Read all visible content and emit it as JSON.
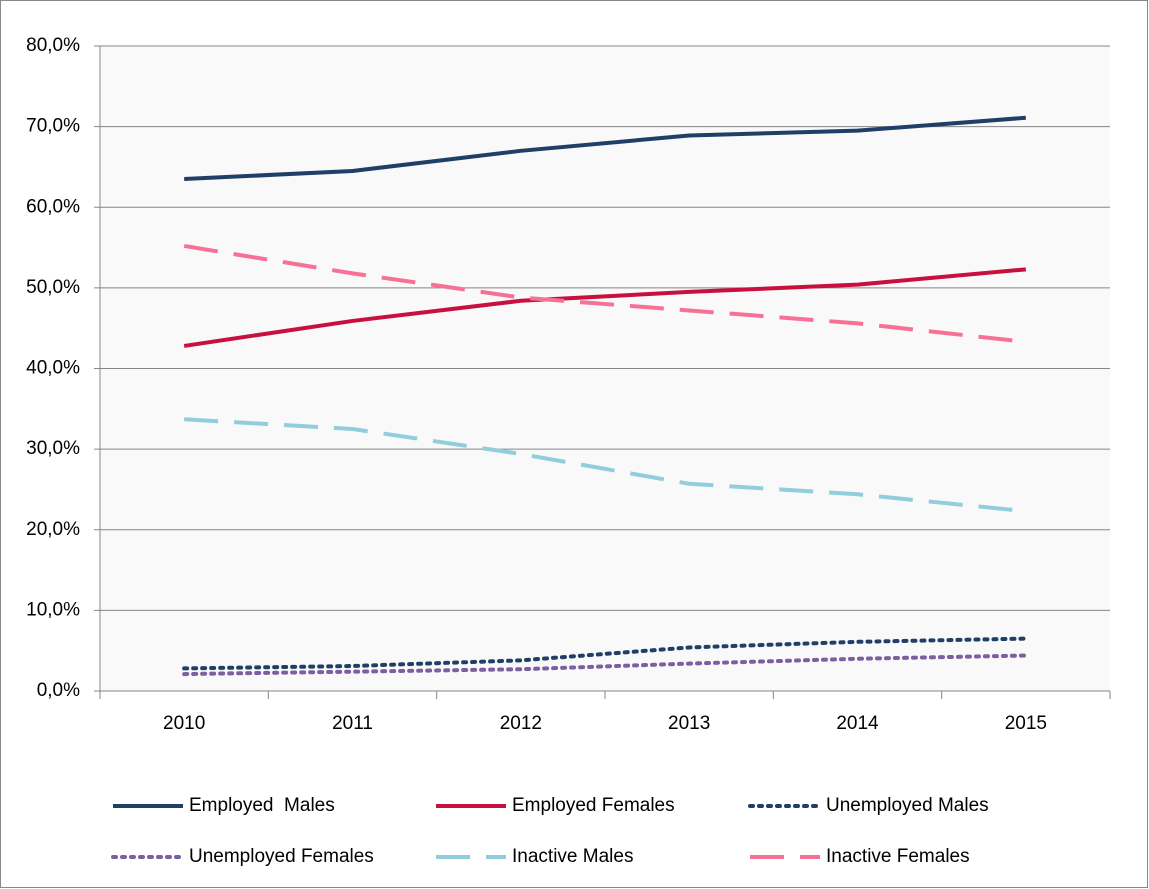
{
  "chart_data": {
    "type": "line",
    "categories": [
      "2010",
      "2011",
      "2012",
      "2013",
      "2014",
      "2015"
    ],
    "series": [
      {
        "name": "Employed  Males",
        "color": "#1f3f66",
        "style": "solid",
        "values": [
          63.5,
          64.5,
          67.0,
          68.9,
          69.5,
          71.1
        ]
      },
      {
        "name": "Employed Females",
        "color": "#c8103f",
        "style": "solid",
        "values": [
          42.8,
          45.9,
          48.4,
          49.5,
          50.4,
          52.3
        ]
      },
      {
        "name": "Unemployed Males",
        "color": "#1f3f66",
        "style": "dotted",
        "values": [
          2.8,
          3.1,
          3.8,
          5.4,
          6.1,
          6.5
        ]
      },
      {
        "name": "Unemployed Females",
        "color": "#7b5fa0",
        "style": "dotted",
        "values": [
          2.1,
          2.4,
          2.7,
          3.4,
          4.0,
          4.4
        ]
      },
      {
        "name": "Inactive Males",
        "color": "#92cddc",
        "style": "dashed",
        "values": [
          33.7,
          32.5,
          29.4,
          25.7,
          24.4,
          22.3
        ]
      },
      {
        "name": "Inactive Females",
        "color": "#f77096",
        "style": "dashed",
        "values": [
          55.2,
          51.8,
          48.8,
          47.2,
          45.6,
          43.3
        ]
      }
    ],
    "ylim": [
      0,
      80
    ],
    "yticks": [
      {
        "value": 0,
        "label": "0,0%"
      },
      {
        "value": 10,
        "label": "10,0%"
      },
      {
        "value": 20,
        "label": "20,0%"
      },
      {
        "value": 30,
        "label": "30,0%"
      },
      {
        "value": 40,
        "label": "40,0%"
      },
      {
        "value": 50,
        "label": "50,0%"
      },
      {
        "value": 60,
        "label": "60,0%"
      },
      {
        "value": 70,
        "label": "70,0%"
      },
      {
        "value": 80,
        "label": "80,0%"
      }
    ],
    "grid": true,
    "legend": "bottom"
  }
}
